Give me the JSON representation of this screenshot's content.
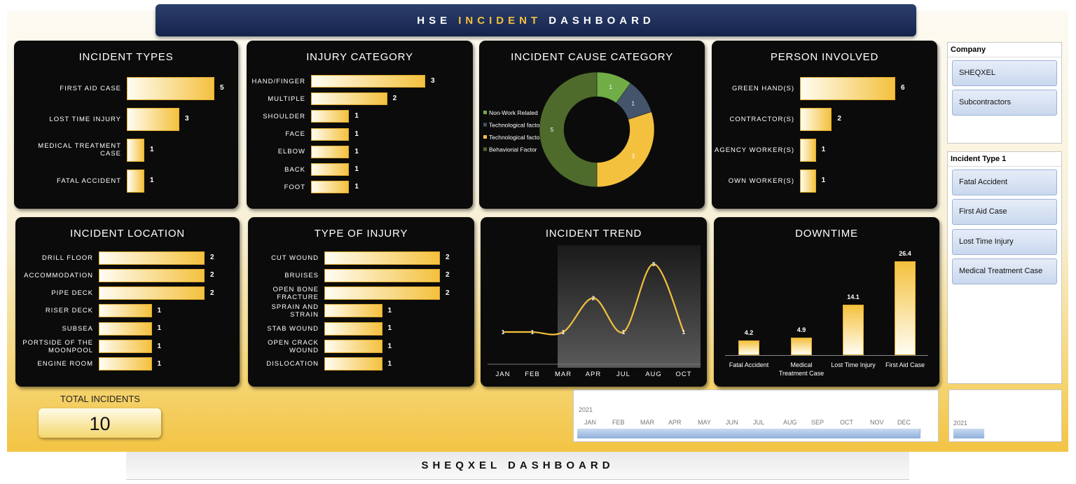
{
  "header": {
    "title": [
      "HSE",
      "INCIDENT",
      "DASHBOARD"
    ]
  },
  "chart_data": [
    {
      "type": "hbar",
      "title": "INCIDENT TYPES",
      "categories": [
        "FIRST AID CASE",
        "LOST TIME INJURY",
        "MEDICAL TREATMENT CASE",
        "FATAL ACCIDENT"
      ],
      "values": [
        5,
        3,
        1,
        1
      ],
      "color": "#f4c13e"
    },
    {
      "type": "hbar",
      "title": "INJURY CATEGORY",
      "categories": [
        "HAND/FINGER",
        "MULTIPLE",
        "SHOULDER",
        "FACE",
        "ELBOW",
        "BACK",
        "FOOT"
      ],
      "values": [
        3,
        2,
        1,
        1,
        1,
        1,
        1
      ],
      "color": "#f4c13e"
    },
    {
      "type": "donut",
      "title": "INCIDENT CAUSE CATEGORY",
      "categories": [
        "Non-Work Related",
        "Technological factos",
        "Technological factor",
        "Behaviorial Factor"
      ],
      "values": [
        1,
        1,
        3,
        5
      ],
      "colors": [
        "#70ad47",
        "#44546a",
        "#f4c13e",
        "#4f6b2c"
      ]
    },
    {
      "type": "hbar",
      "title": "PERSON INVOLVED",
      "categories": [
        "GREEN HAND(S)",
        "CONTRACTOR(S)",
        "AGENCY WORKER(S)",
        "OWN WORKER(S)"
      ],
      "values": [
        6,
        2,
        1,
        1
      ],
      "color": "#f4c13e"
    },
    {
      "type": "hbar",
      "title": "INCIDENT LOCATION",
      "categories": [
        "DRILL FLOOR",
        "ACCOMMODATION",
        "PIPE DECK",
        "RISER DECK",
        "SUBSEA",
        "PORTSIDE OF THE MOONPOOL",
        "ENGINE ROOM"
      ],
      "values": [
        2,
        2,
        2,
        1,
        1,
        1,
        1
      ],
      "color": "#f4c13e"
    },
    {
      "type": "hbar",
      "title": "TYPE OF INJURY",
      "categories": [
        "CUT WOUND",
        "BRUISES",
        "OPEN BONE FRACTURE",
        "SPRAIN AND STRAIN",
        "STAB WOUND",
        "OPEN CRACK WOUND",
        "DISLOCATION"
      ],
      "values": [
        2,
        2,
        2,
        1,
        1,
        1,
        1
      ],
      "color": "#f4c13e"
    },
    {
      "type": "line",
      "title": "INCIDENT TREND",
      "categories": [
        "JAN",
        "FEB",
        "MAR",
        "APR",
        "JUL",
        "AUG",
        "OCT"
      ],
      "values": [
        1,
        1,
        1,
        2,
        1,
        3,
        1
      ],
      "color": "#f4c13e"
    },
    {
      "type": "column",
      "title": "DOWNTIME",
      "categories": [
        "Fatal Accident",
        "Medical Treatment Case",
        "Lost Time Injury",
        "First Aid Case"
      ],
      "values": [
        4.2,
        4.9,
        14.1,
        26.4
      ],
      "color": "#f4c13e"
    }
  ],
  "slicers": [
    {
      "title": "Company",
      "items": [
        "SHEQXEL",
        "Subcontractors"
      ]
    },
    {
      "title": "Incident Type 1",
      "items": [
        "Fatal Accident",
        "First Aid Case",
        "Lost Time Injury",
        "Medical Treatment Case"
      ]
    }
  ],
  "total": {
    "label": "TOTAL INCIDENTS",
    "value": 10
  },
  "timeline": {
    "year": "2021",
    "months": [
      "JAN",
      "FEB",
      "MAR",
      "APR",
      "MAY",
      "JUN",
      "JUL",
      "AUG",
      "SEP",
      "OCT",
      "NOV",
      "DEC"
    ]
  },
  "year_slicer": {
    "year": "2021"
  },
  "footer": {
    "title": "SHEQXEL DASHBOARD"
  }
}
